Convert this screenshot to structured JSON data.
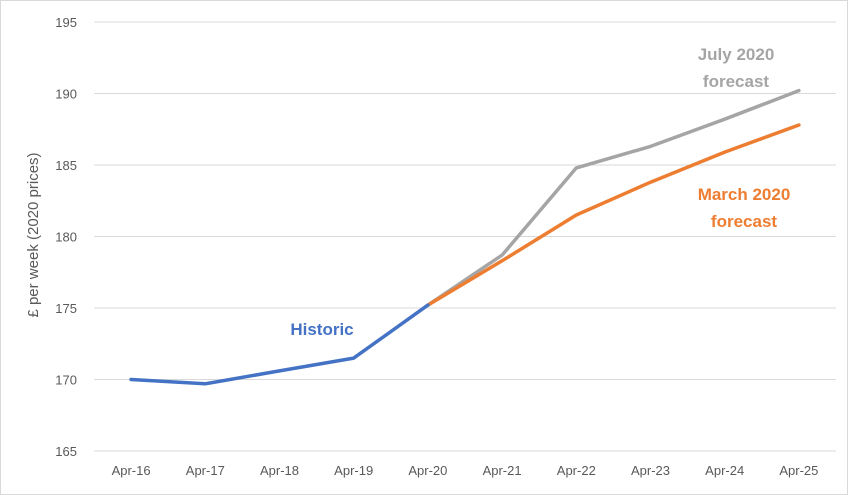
{
  "chart_data": {
    "type": "line",
    "title": "",
    "xlabel": "",
    "ylabel": "£ per week (2020 prices)",
    "categories": [
      "Apr-16",
      "Apr-17",
      "Apr-18",
      "Apr-19",
      "Apr-20",
      "Apr-21",
      "Apr-22",
      "Apr-23",
      "Apr-24",
      "Apr-25"
    ],
    "ylim": [
      165,
      195
    ],
    "yticks": [
      165,
      170,
      175,
      180,
      185,
      190,
      195
    ],
    "grid": "horizontal",
    "series": [
      {
        "name": "Historic",
        "label_lines": [
          "Historic"
        ],
        "color": "#4472c4",
        "values": [
          170.0,
          169.7,
          170.6,
          171.5,
          175.2,
          null,
          null,
          null,
          null,
          null
        ]
      },
      {
        "name": "July 2020 forecast",
        "label_lines": [
          "July 2020",
          "forecast"
        ],
        "color": "#a5a5a5",
        "values": [
          null,
          null,
          null,
          null,
          175.2,
          178.7,
          184.8,
          186.3,
          188.2,
          190.2
        ]
      },
      {
        "name": "March 2020 forecast",
        "label_lines": [
          "March 2020",
          "forecast"
        ],
        "color": "#ed7d31",
        "values": [
          null,
          null,
          null,
          null,
          175.2,
          178.3,
          181.5,
          183.8,
          185.9,
          187.8
        ]
      }
    ]
  }
}
